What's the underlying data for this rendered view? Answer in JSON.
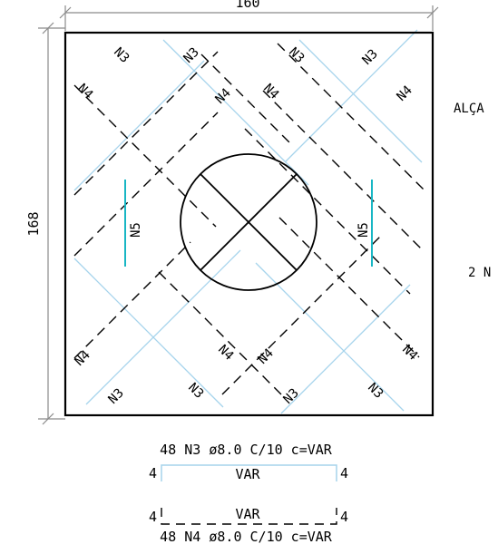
{
  "dimensions": {
    "width": "160",
    "height": "168"
  },
  "bar_labels": {
    "n3": "N3",
    "n4": "N4",
    "n5": "N5"
  },
  "side_labels": {
    "alca": "ALÇA",
    "two_n": "2 N"
  },
  "schedule": {
    "n3": {
      "description": "48 N3 ø8.0 C/10 c=VAR",
      "left_hook": "4",
      "length": "VAR",
      "right_hook": "4"
    },
    "n4": {
      "description": "48 N4 ø8.0 C/10 c=VAR",
      "left_hook": "4",
      "length": "VAR",
      "right_hook": "4"
    }
  },
  "colors": {
    "n3_bar": "#a6d4ec",
    "n4_bar": "#000000",
    "n5_bar": "#18b6c4",
    "dimension": "#8a8a8a"
  }
}
